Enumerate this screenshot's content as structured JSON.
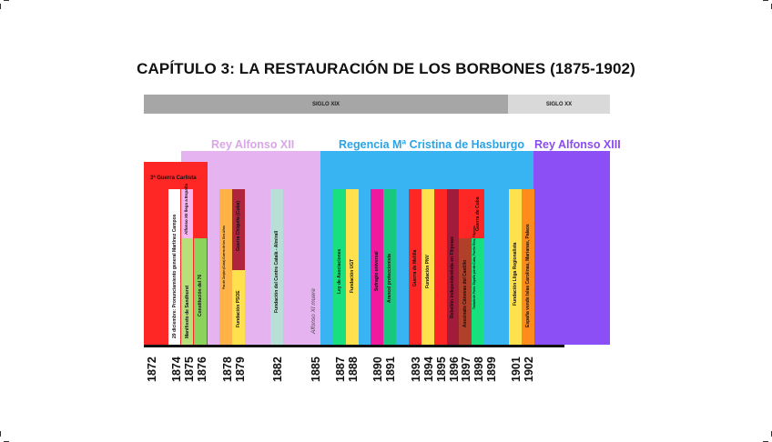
{
  "title": "CAPÍTULO 3: LA RESTAURACIÓN DE LOS BORBONES (1875-1902)",
  "centuries": [
    {
      "label": "SIGLO XIX",
      "color": "#a6a6a6"
    },
    {
      "label": "SIGLO XX",
      "color": "#d9d9d9"
    }
  ],
  "reigns": [
    {
      "label": "Rey Alfonso XII",
      "color": "#e5b3f0",
      "text_color": "#d9a7e6"
    },
    {
      "label": "Regencia Mª Cristina de Hasburgo",
      "color": "#38b4f2",
      "text_color": "#2aa3e8"
    },
    {
      "label": "Rey Alfonso XIII",
      "color": "#8c4ff5",
      "text_color": "#8a4cf2"
    }
  ],
  "events": [
    {
      "label": "3ª Guerra Carlista",
      "color": "#ff2626"
    },
    {
      "label": "29 diciembre: Pronunciamiento general Martínez Campos",
      "color": "#ffffff"
    },
    {
      "label": "Manifiesto de Sandhurst",
      "color": "#b7e07a"
    },
    {
      "label": "Alfonso XII llega a España",
      "color": "#f6b6f0"
    },
    {
      "label": "Constitución del 76",
      "color": "#8bd35a"
    },
    {
      "label": "Paz de Zanjón (Cuba) Guerra de los Diez Años",
      "color": "#ffb347"
    },
    {
      "label": "Fundación PSOE",
      "color": "#ffe14d"
    },
    {
      "label": "Guerra Chiquita (Cuba)",
      "color": "#b0243c"
    },
    {
      "label": "Fundación del Centre Català - Almirall",
      "color": "#b7dfd5"
    },
    {
      "label": "Alfonso XI muere",
      "color": "transparent"
    },
    {
      "label": "Ley de Asociaciones",
      "color": "#19e07f"
    },
    {
      "label": "Fundación UGT",
      "color": "#ffe14d"
    },
    {
      "label": "Sufragio universal",
      "color": "#f01aa0"
    },
    {
      "label": "Arancel proteccionista",
      "color": "#19c77f"
    },
    {
      "label": "Guerra de Melilla",
      "color": "#ff2626"
    },
    {
      "label": "Fundación PNV",
      "color": "#ffe14d"
    },
    {
      "label": "Rebelión independentista en Filipinas",
      "color": "#ff2626"
    },
    {
      "label": "Asesinato Cánovas del Castillo",
      "color": "#a01c3a"
    },
    {
      "label": "Guerra de Cuba",
      "color": "#ff2626"
    },
    {
      "label": "Tratado de París: España pierde Cuba, Puerto Rico, Filipinas",
      "color": "#19e07f"
    },
    {
      "label": "Fundación Lliga Regionalista",
      "color": "#ffe14d"
    },
    {
      "label": "España vende Islas Carolinas, Marianas, Palaos",
      "color": "#ff8c1a"
    }
  ],
  "years": [
    "1872",
    "1874",
    "1875",
    "1876",
    "1878",
    "1879",
    "1882",
    "1885",
    "1887",
    "1888",
    "1890",
    "1891",
    "1893",
    "1894",
    "1895",
    "1896",
    "1897",
    "1898",
    "1899",
    "1901",
    "1902"
  ]
}
